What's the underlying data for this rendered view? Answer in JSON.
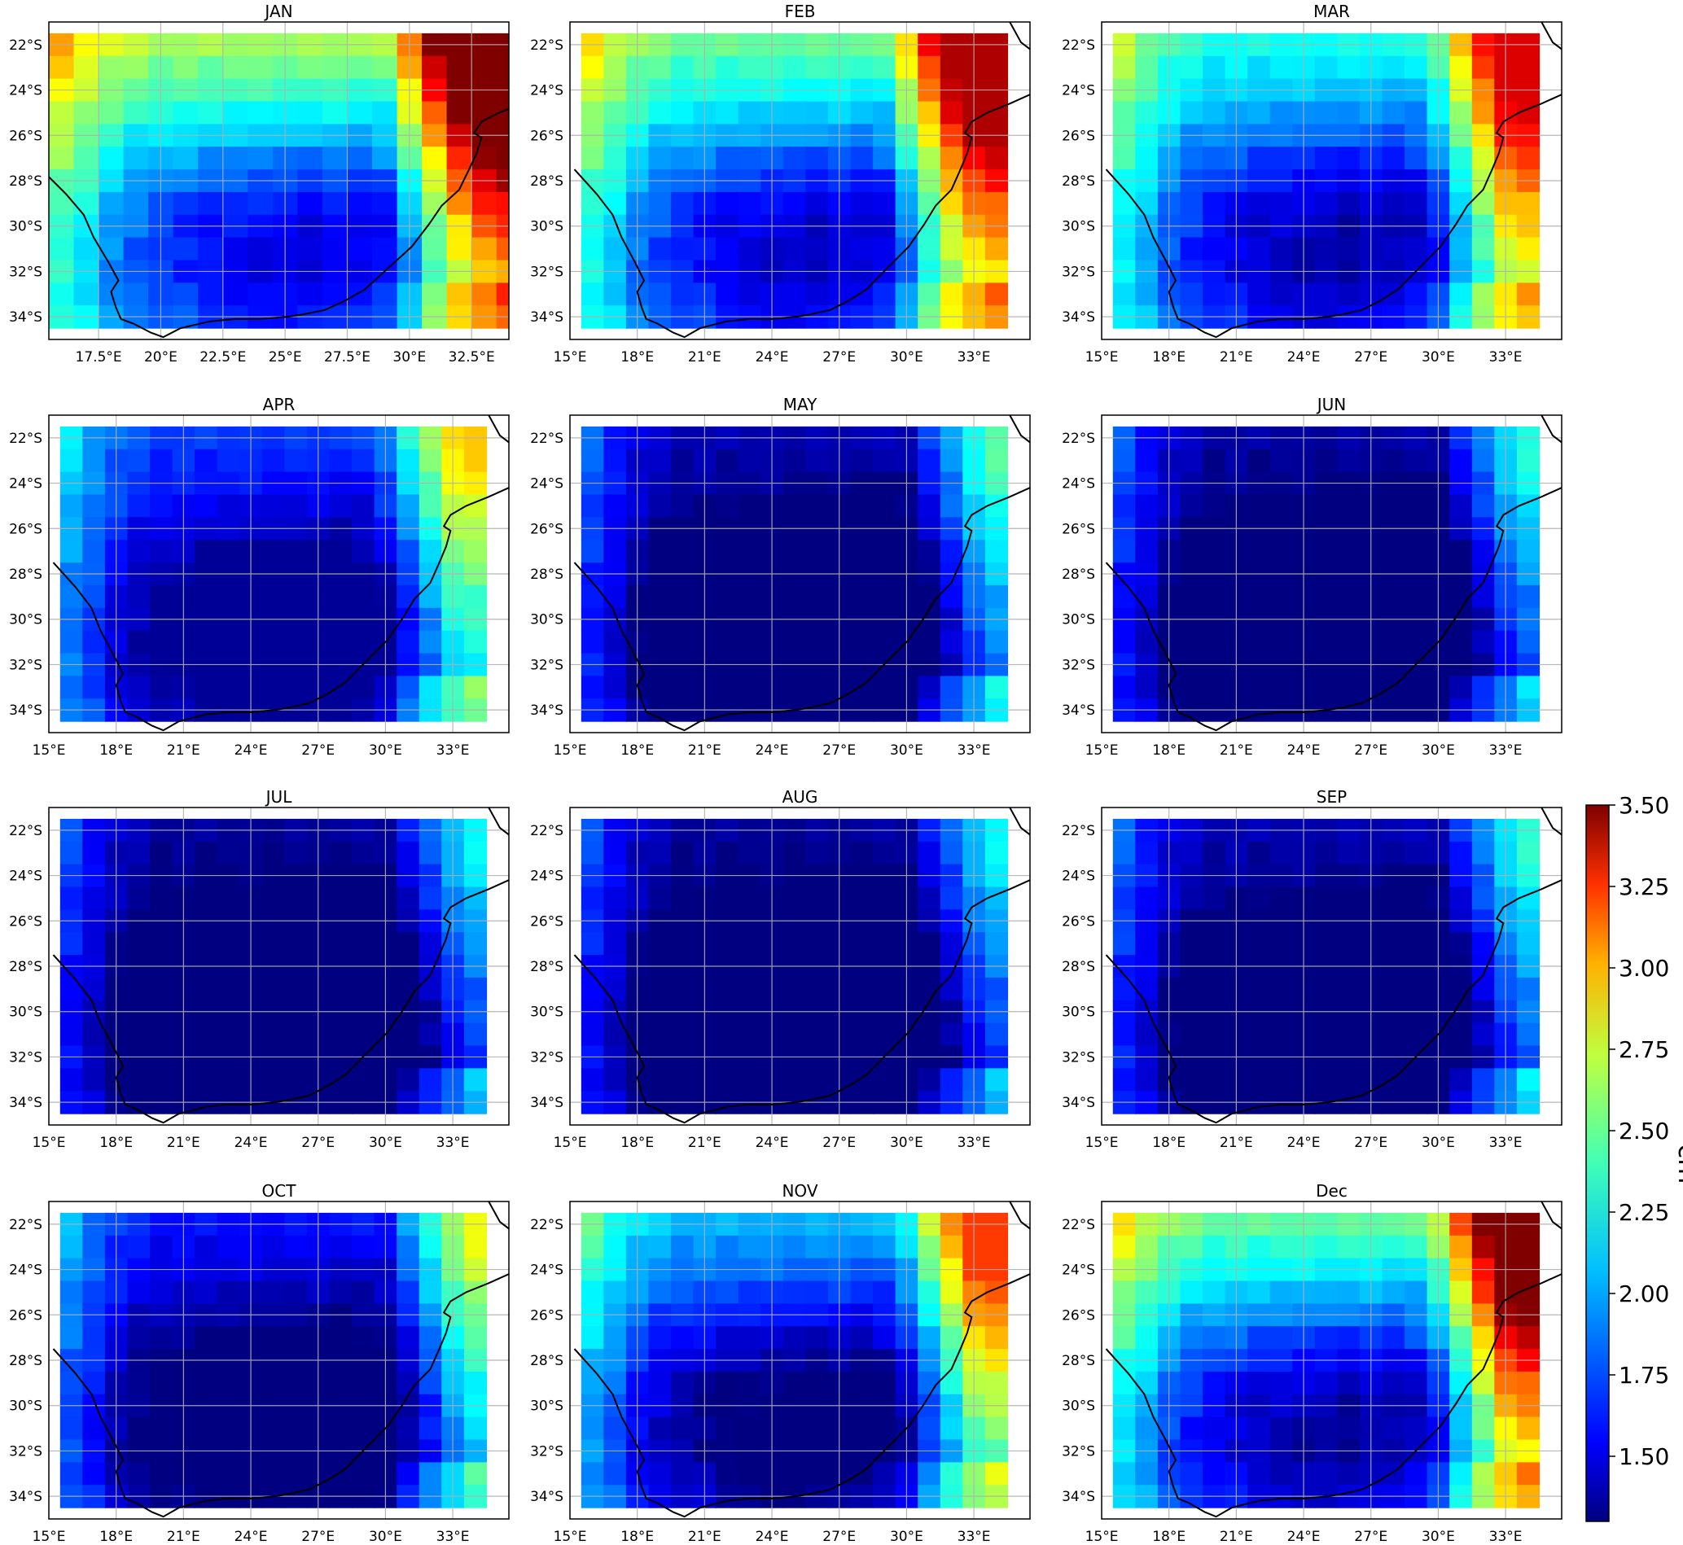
{
  "colorbar": {
    "label": "cm",
    "min": 1.3,
    "max": 3.5,
    "ticks": [
      "1.50",
      "1.75",
      "2.00",
      "2.25",
      "2.50",
      "2.75",
      "3.00",
      "3.25",
      "3.50"
    ],
    "tick_values": [
      1.5,
      1.75,
      2.0,
      2.25,
      2.5,
      2.75,
      3.0,
      3.25,
      3.5
    ],
    "colormap": "jet"
  },
  "panels": [
    {
      "title": "JAN",
      "lat_ticks": [
        "22°S",
        "24°S",
        "26°S",
        "28°S",
        "30°S",
        "32°S",
        "34°S"
      ],
      "lon_ticks": [
        "17.5°E",
        "20°E",
        "22.5°E",
        "25°E",
        "27.5°E",
        "30°E",
        "32.5°E"
      ],
      "extent": {
        "lon_min": 15.5,
        "lon_max": 34.0,
        "lat_min": -35.0,
        "lat_max": -21.0
      },
      "pattern": {
        "base": 2.0,
        "min": 1.35,
        "max": 3.5,
        "hot_lat_boost": 0.55,
        "east_amp": 1.5,
        "east_start": 31.0,
        "north_amp": 0.6
      }
    },
    {
      "title": "FEB",
      "lat_ticks": [
        "22°S",
        "24°S",
        "26°S",
        "28°S",
        "30°S",
        "32°S",
        "34°S"
      ],
      "lon_ticks": [
        "15°E",
        "18°E",
        "21°E",
        "24°E",
        "27°E",
        "30°E",
        "33°E"
      ],
      "extent": {
        "lon_min": 15.0,
        "lon_max": 35.5,
        "lat_min": -35.0,
        "lat_max": -21.0
      },
      "pattern": {
        "base": 1.95,
        "min": 1.35,
        "max": 3.4,
        "hot_lat_boost": 0.45,
        "east_amp": 1.45,
        "east_start": 31.0,
        "north_amp": 0.5
      }
    },
    {
      "title": "MAR",
      "lat_ticks": [
        "22°S",
        "24°S",
        "26°S",
        "28°S",
        "30°S",
        "32°S",
        "34°S"
      ],
      "lon_ticks": [
        "15°E",
        "18°E",
        "21°E",
        "24°E",
        "27°E",
        "30°E",
        "33°E"
      ],
      "extent": {
        "lon_min": 15.0,
        "lon_max": 35.5,
        "lat_min": -35.0,
        "lat_max": -21.0
      },
      "pattern": {
        "base": 1.9,
        "min": 1.35,
        "max": 3.3,
        "hot_lat_boost": 0.35,
        "east_amp": 1.35,
        "east_start": 31.5,
        "north_amp": 0.35
      }
    },
    {
      "title": "APR",
      "lat_ticks": [
        "22°S",
        "24°S",
        "26°S",
        "28°S",
        "30°S",
        "32°S",
        "34°S"
      ],
      "lon_ticks": [
        "15°E",
        "18°E",
        "21°E",
        "24°E",
        "27°E",
        "30°E",
        "33°E"
      ],
      "extent": {
        "lon_min": 15.0,
        "lon_max": 35.5,
        "lat_min": -35.0,
        "lat_max": -21.0
      },
      "pattern": {
        "base": 1.65,
        "min": 1.35,
        "max": 2.95,
        "hot_lat_boost": 0.15,
        "east_amp": 1.05,
        "east_start": 31.5,
        "north_amp": 0.1
      }
    },
    {
      "title": "MAY",
      "lat_ticks": [
        "22°S",
        "24°S",
        "26°S",
        "28°S",
        "30°S",
        "32°S",
        "34°S"
      ],
      "lon_ticks": [
        "15°E",
        "18°E",
        "21°E",
        "24°E",
        "27°E",
        "30°E",
        "33°E"
      ],
      "extent": {
        "lon_min": 15.0,
        "lon_max": 35.5,
        "lat_min": -35.0,
        "lat_max": -21.0
      },
      "pattern": {
        "base": 1.45,
        "min": 1.3,
        "max": 2.5,
        "hot_lat_boost": 0.0,
        "east_amp": 0.95,
        "east_start": 32.0,
        "north_amp": 0.0
      }
    },
    {
      "title": "JUN",
      "lat_ticks": [
        "22°S",
        "24°S",
        "26°S",
        "28°S",
        "30°S",
        "32°S",
        "34°S"
      ],
      "lon_ticks": [
        "15°E",
        "18°E",
        "21°E",
        "24°E",
        "27°E",
        "30°E",
        "33°E"
      ],
      "extent": {
        "lon_min": 15.0,
        "lon_max": 35.5,
        "lat_min": -35.0,
        "lat_max": -21.0
      },
      "pattern": {
        "base": 1.42,
        "min": 1.3,
        "max": 2.35,
        "hot_lat_boost": 0.0,
        "east_amp": 0.85,
        "east_start": 32.0,
        "north_amp": 0.0
      }
    },
    {
      "title": "JUL",
      "lat_ticks": [
        "22°S",
        "24°S",
        "26°S",
        "28°S",
        "30°S",
        "32°S",
        "34°S"
      ],
      "lon_ticks": [
        "15°E",
        "18°E",
        "21°E",
        "24°E",
        "27°E",
        "30°E",
        "33°E"
      ],
      "extent": {
        "lon_min": 15.0,
        "lon_max": 35.5,
        "lat_min": -35.0,
        "lat_max": -21.0
      },
      "pattern": {
        "base": 1.4,
        "min": 1.3,
        "max": 2.3,
        "hot_lat_boost": 0.0,
        "east_amp": 0.8,
        "east_start": 32.0,
        "north_amp": 0.0
      }
    },
    {
      "title": "AUG",
      "lat_ticks": [
        "22°S",
        "24°S",
        "26°S",
        "28°S",
        "30°S",
        "32°S",
        "34°S"
      ],
      "lon_ticks": [
        "15°E",
        "18°E",
        "21°E",
        "24°E",
        "27°E",
        "30°E",
        "33°E"
      ],
      "extent": {
        "lon_min": 15.0,
        "lon_max": 35.5,
        "lat_min": -35.0,
        "lat_max": -21.0
      },
      "pattern": {
        "base": 1.4,
        "min": 1.3,
        "max": 2.3,
        "hot_lat_boost": 0.0,
        "east_amp": 0.8,
        "east_start": 32.0,
        "north_amp": 0.0
      }
    },
    {
      "title": "SEP",
      "lat_ticks": [
        "22°S",
        "24°S",
        "26°S",
        "28°S",
        "30°S",
        "32°S",
        "34°S"
      ],
      "lon_ticks": [
        "15°E",
        "18°E",
        "21°E",
        "24°E",
        "27°E",
        "30°E",
        "33°E"
      ],
      "extent": {
        "lon_min": 15.0,
        "lon_max": 35.5,
        "lat_min": -35.0,
        "lat_max": -21.0
      },
      "pattern": {
        "base": 1.45,
        "min": 1.3,
        "max": 2.35,
        "hot_lat_boost": 0.0,
        "east_amp": 0.85,
        "east_start": 32.0,
        "north_amp": 0.0
      }
    },
    {
      "title": "OCT",
      "lat_ticks": [
        "22°S",
        "24°S",
        "26°S",
        "28°S",
        "30°S",
        "32°S",
        "34°S"
      ],
      "lon_ticks": [
        "15°E",
        "18°E",
        "21°E",
        "24°E",
        "27°E",
        "30°E",
        "33°E"
      ],
      "extent": {
        "lon_min": 15.0,
        "lon_max": 35.5,
        "lat_min": -35.0,
        "lat_max": -21.0
      },
      "pattern": {
        "base": 1.55,
        "min": 1.3,
        "max": 2.75,
        "hot_lat_boost": 0.15,
        "east_amp": 1.0,
        "east_start": 32.0,
        "north_amp": 0.1
      }
    },
    {
      "title": "NOV",
      "lat_ticks": [
        "22°S",
        "24°S",
        "26°S",
        "28°S",
        "30°S",
        "32°S",
        "34°S"
      ],
      "lon_ticks": [
        "15°E",
        "18°E",
        "21°E",
        "24°E",
        "27°E",
        "30°E",
        "33°E"
      ],
      "extent": {
        "lon_min": 15.0,
        "lon_max": 35.5,
        "lat_min": -35.0,
        "lat_max": -21.0
      },
      "pattern": {
        "base": 1.7,
        "min": 1.3,
        "max": 3.1,
        "hot_lat_boost": 0.45,
        "east_amp": 1.2,
        "east_start": 31.5,
        "north_amp": 0.35
      }
    },
    {
      "title": "Dec",
      "lat_ticks": [
        "22°S",
        "24°S",
        "26°S",
        "28°S",
        "30°S",
        "32°S",
        "34°S"
      ],
      "lon_ticks": [
        "15°E",
        "18°E",
        "21°E",
        "24°E",
        "27°E",
        "30°E",
        "33°E"
      ],
      "extent": {
        "lon_min": 15.0,
        "lon_max": 35.5,
        "lat_min": -35.0,
        "lat_max": -21.0
      },
      "pattern": {
        "base": 1.85,
        "min": 1.3,
        "max": 3.5,
        "hot_lat_boost": 0.6,
        "east_amp": 1.5,
        "east_start": 31.5,
        "north_amp": 0.6
      }
    }
  ]
}
